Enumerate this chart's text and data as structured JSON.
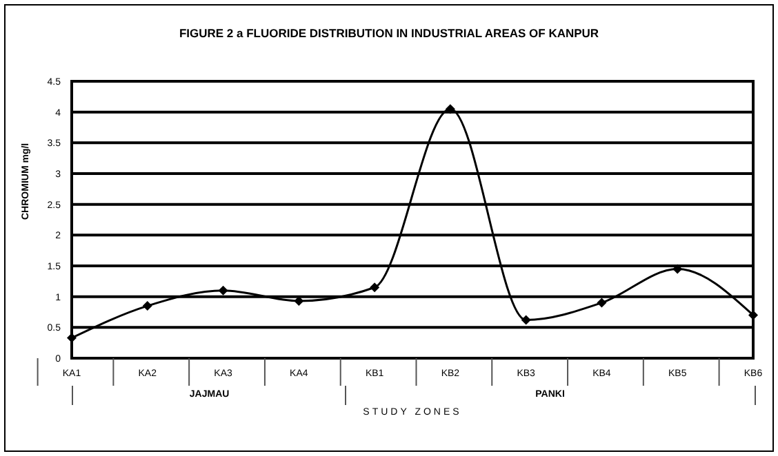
{
  "chart_data": {
    "type": "line",
    "title": "FIGURE  2 a  FLUORIDE DISTRIBUTION  IN INDUSTRIAL  AREAS  OF  KANPUR",
    "xlabel": "STUDY ZONES",
    "ylabel": "CHROMIUM  mg/l",
    "categories": [
      "KA1",
      "KA2",
      "KA3",
      "KA4",
      "KB1",
      "KB2",
      "KB3",
      "KB4",
      "KB5",
      "KB6"
    ],
    "series": [
      {
        "color": "#000000",
        "values": [
          0.33,
          0.85,
          1.1,
          0.93,
          1.15,
          4.05,
          0.62,
          0.9,
          1.45,
          0.7
        ]
      }
    ],
    "annotations": [
      "JAJMAU",
      "PANKI"
    ],
    "ylim": [
      0,
      4.5
    ],
    "yticks": [
      0,
      0.5,
      1,
      1.5,
      2,
      2.5,
      3,
      3.5,
      4,
      4.5
    ],
    "grid": "y",
    "legend": false,
    "marker": "diamond",
    "line_style": "solid"
  }
}
